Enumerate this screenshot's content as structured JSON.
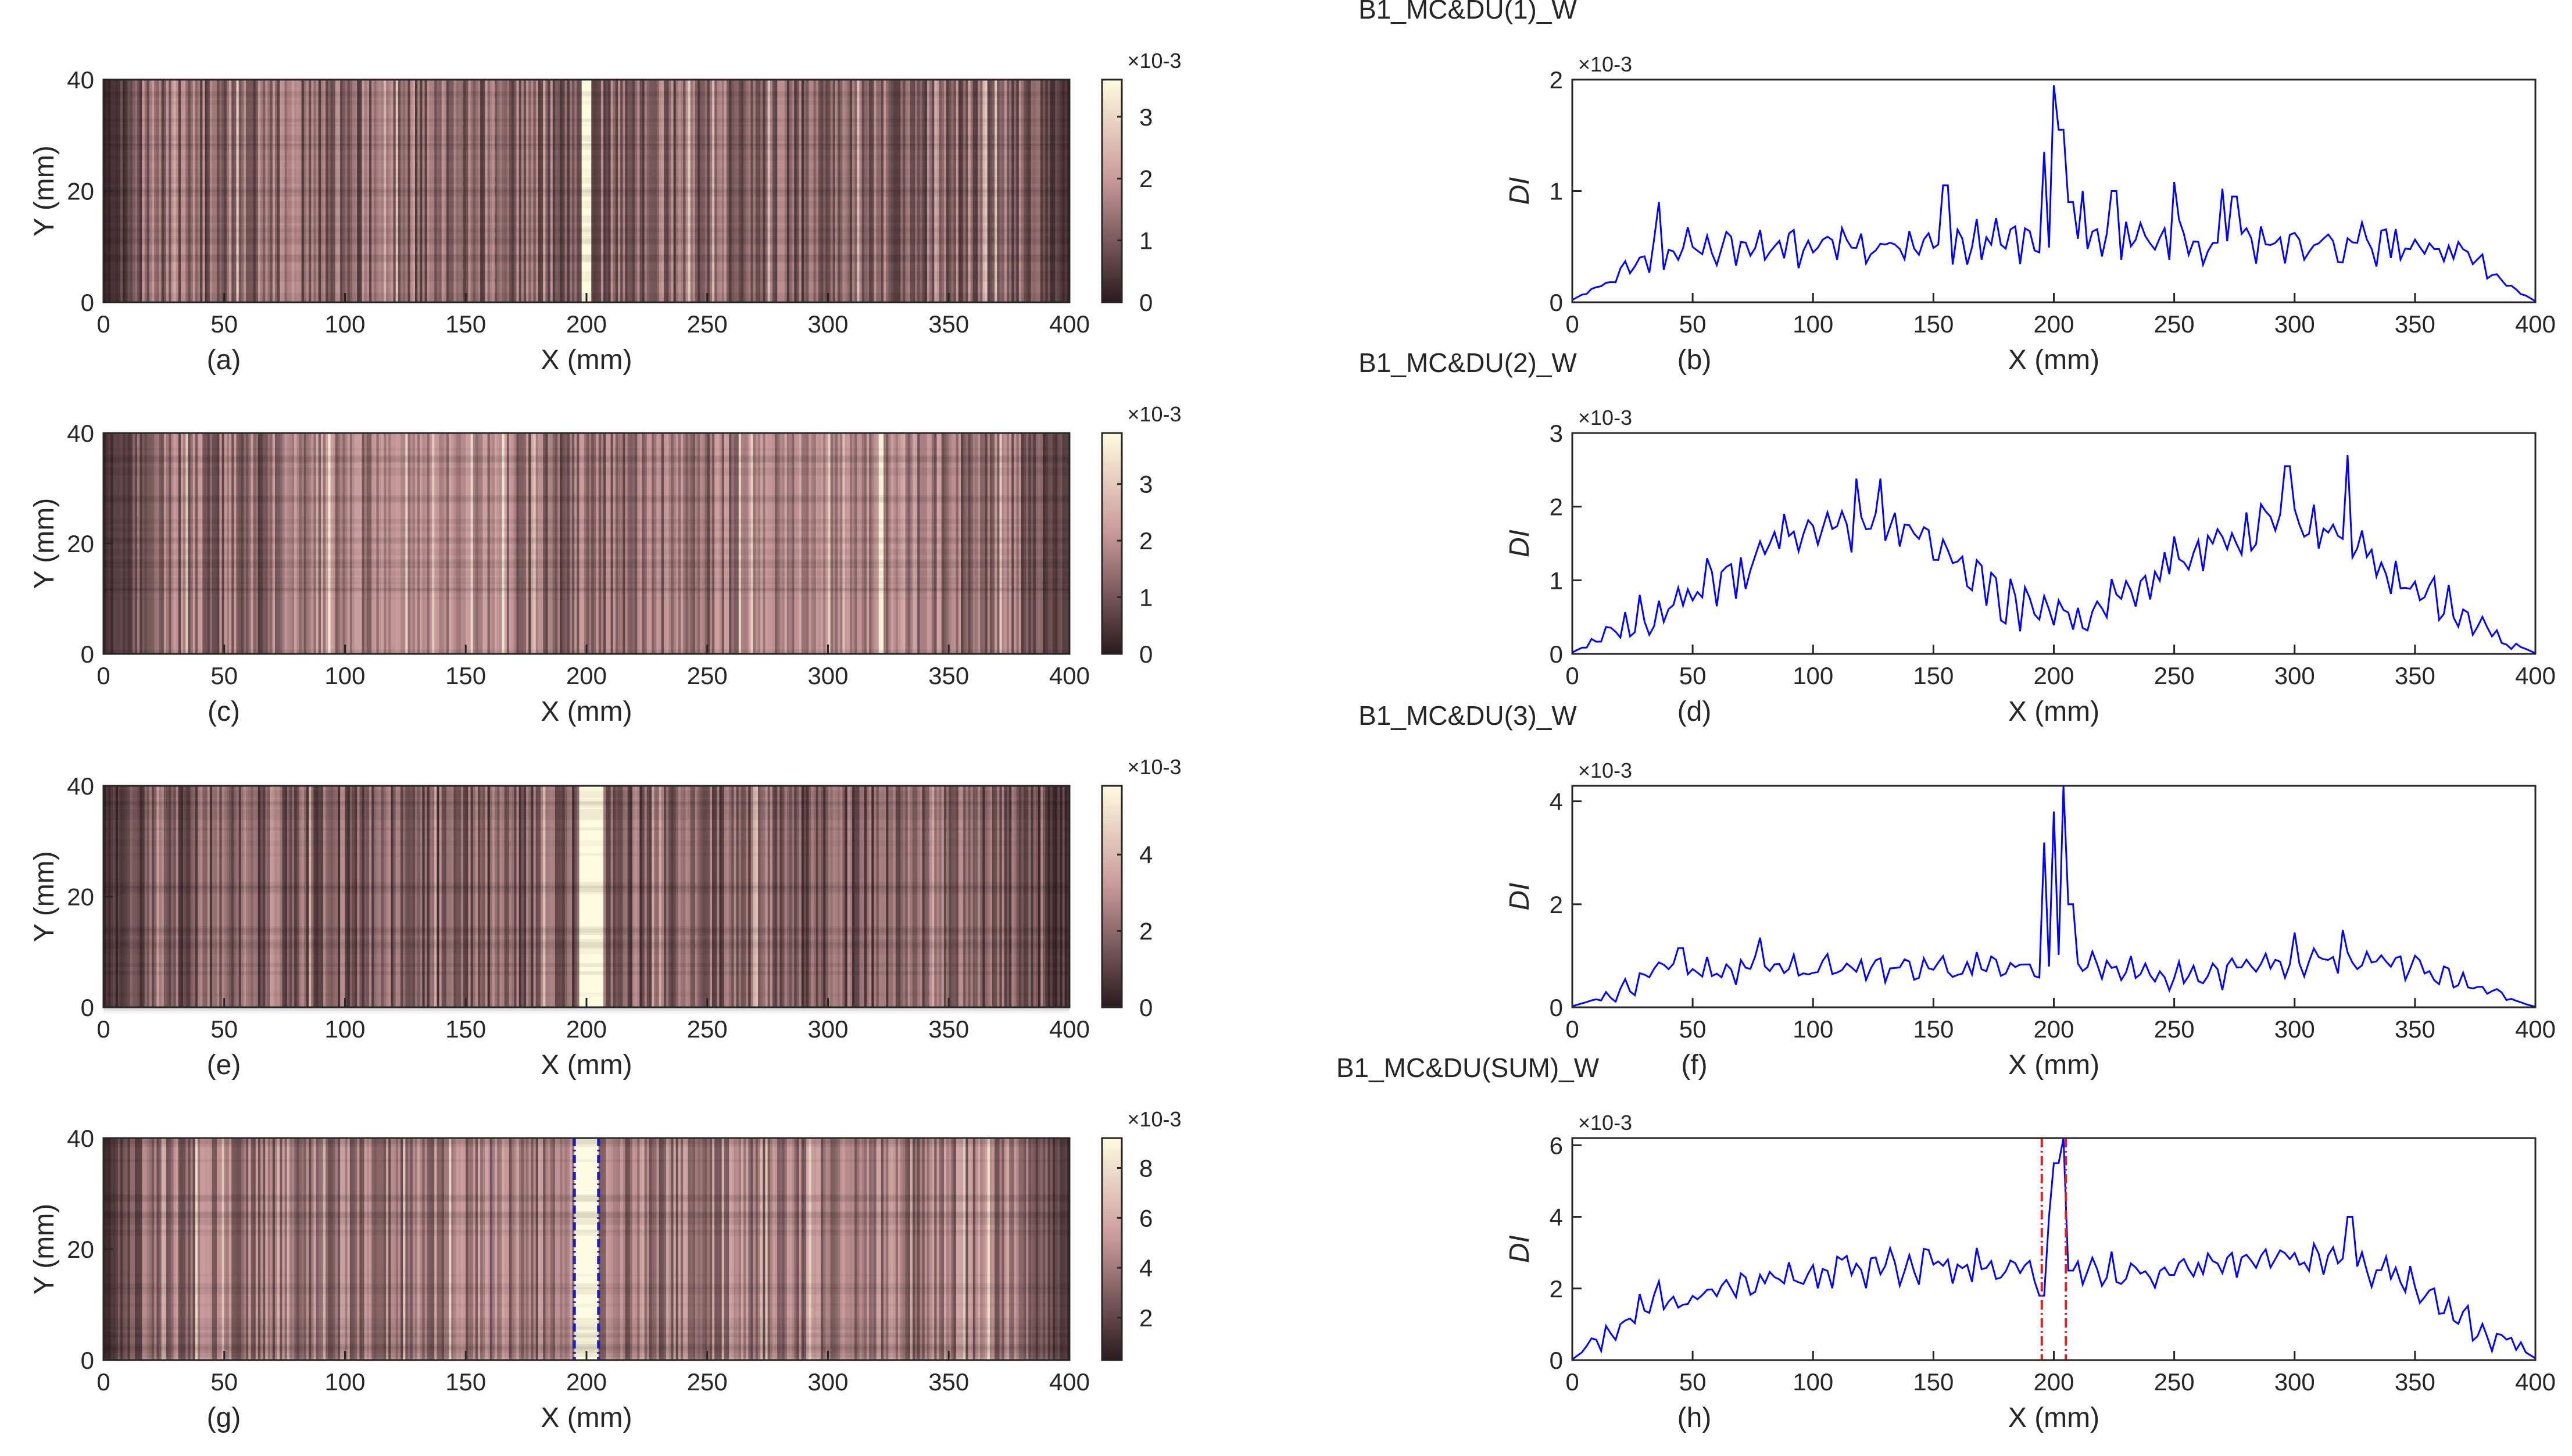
{
  "figure": {
    "x_axis_label": "X (mm)",
    "y_axis_label": "Y (mm)",
    "di_label": "DI",
    "exponent_label": "×10-3"
  },
  "colors": {
    "line": "#0000ff",
    "boundary": "#e02020",
    "marker": "#2020c0",
    "map_dark": "#2a1a1e",
    "map_mid": "#c89a9a",
    "map_light": "#fffbe0"
  },
  "chart_data": [
    {
      "type": "heatmap",
      "id": "a",
      "panel_label": "(a)",
      "title": "B1_MC&DU(1)_W",
      "xlabel": "X (mm)",
      "ylabel": "Y (mm)",
      "xlim": [
        0,
        400
      ],
      "ylim": [
        0,
        40
      ],
      "xticks": [
        0,
        50,
        100,
        150,
        200,
        250,
        300,
        350,
        400
      ],
      "yticks": [
        0,
        20,
        40
      ],
      "colorbar": {
        "range": [
          0,
          3.6
        ],
        "ticks": [
          0,
          1,
          2,
          3
        ],
        "exponent": "×10-3"
      },
      "base_level": 0.34,
      "bright_bands": [
        {
          "x": 200,
          "width": 5,
          "level": 1.0
        }
      ],
      "markers": []
    },
    {
      "type": "line",
      "id": "b",
      "panel_label": "(b)",
      "title": "",
      "xlabel": "X (mm)",
      "ylabel": "DI",
      "xlim": [
        0,
        400
      ],
      "ylim": [
        0,
        2
      ],
      "xticks": [
        0,
        50,
        100,
        150,
        200,
        250,
        300,
        350,
        400
      ],
      "yticks": [
        0,
        1,
        2
      ],
      "exponent": "×10-3",
      "envelope": [
        [
          0,
          0.02
        ],
        [
          15,
          0.2
        ],
        [
          35,
          0.5
        ],
        [
          200,
          0.55
        ],
        [
          365,
          0.5
        ],
        [
          385,
          0.2
        ],
        [
          400,
          0.01
        ]
      ],
      "amplitude": 0.22,
      "seed": 11,
      "peaks": [
        [
          36,
          0.9
        ],
        [
          155,
          1.05
        ],
        [
          196,
          1.35
        ],
        [
          200,
          1.95
        ],
        [
          203,
          1.55
        ],
        [
          207,
          0.9
        ],
        [
          212,
          1.0
        ],
        [
          225,
          1.0
        ],
        [
          250,
          1.08
        ],
        [
          270,
          1.02
        ],
        [
          275,
          0.95
        ]
      ],
      "boundaries": []
    },
    {
      "type": "heatmap",
      "id": "c",
      "panel_label": "(c)",
      "title": "B1_MC&DU(2)_W",
      "xlabel": "X (mm)",
      "ylabel": "Y (mm)",
      "xlim": [
        0,
        400
      ],
      "ylim": [
        0,
        40
      ],
      "xticks": [
        0,
        50,
        100,
        150,
        200,
        250,
        300,
        350,
        400
      ],
      "yticks": [
        0,
        20,
        40
      ],
      "colorbar": {
        "range": [
          0,
          3.9
        ],
        "ticks": [
          0,
          1,
          2,
          3
        ],
        "exponent": "×10-3"
      },
      "base_level": 0.36,
      "bright_bands": [
        {
          "x": 125,
          "width": 60,
          "level": 0.62
        },
        {
          "x": 300,
          "width": 60,
          "level": 0.62
        },
        {
          "x": 322,
          "width": 3,
          "level": 0.95
        }
      ],
      "markers": []
    },
    {
      "type": "line",
      "id": "d",
      "panel_label": "(d)",
      "title": "",
      "xlabel": "X (mm)",
      "ylabel": "DI",
      "xlim": [
        0,
        400
      ],
      "ylim": [
        0,
        3
      ],
      "xticks": [
        0,
        50,
        100,
        150,
        200,
        250,
        300,
        350,
        400
      ],
      "yticks": [
        0,
        1,
        2,
        3
      ],
      "exponent": "×10-3",
      "envelope": [
        [
          0,
          0.02
        ],
        [
          30,
          0.5
        ],
        [
          60,
          1.0
        ],
        [
          90,
          1.5
        ],
        [
          120,
          1.8
        ],
        [
          150,
          1.5
        ],
        [
          175,
          0.8
        ],
        [
          200,
          0.5
        ],
        [
          225,
          0.8
        ],
        [
          250,
          1.3
        ],
        [
          290,
          1.8
        ],
        [
          320,
          1.6
        ],
        [
          350,
          0.9
        ],
        [
          380,
          0.3
        ],
        [
          400,
          0.01
        ]
      ],
      "amplitude": 0.4,
      "seed": 23,
      "peaks": [
        [
          88,
          1.9
        ],
        [
          118,
          2.38
        ],
        [
          128,
          2.38
        ],
        [
          297,
          2.55
        ],
        [
          322,
          2.7
        ]
      ],
      "boundaries": []
    },
    {
      "type": "heatmap",
      "id": "e",
      "panel_label": "(e)",
      "title": "B1_MC&DU(3)_W",
      "xlabel": "X (mm)",
      "ylabel": "Y (mm)",
      "xlim": [
        0,
        400
      ],
      "ylim": [
        0,
        40
      ],
      "xticks": [
        0,
        50,
        100,
        150,
        200,
        250,
        300,
        350,
        400
      ],
      "yticks": [
        0,
        20,
        40
      ],
      "colorbar": {
        "range": [
          0,
          5.8
        ],
        "ticks": [
          0,
          2,
          4
        ],
        "exponent": "×10-3"
      },
      "base_level": 0.3,
      "bright_bands": [
        {
          "x": 202,
          "width": 10,
          "level": 1.0
        }
      ],
      "markers": []
    },
    {
      "type": "line",
      "id": "f",
      "panel_label": "(f)",
      "title": "",
      "xlabel": "X (mm)",
      "ylabel": "DI",
      "xlim": [
        0,
        400
      ],
      "ylim": [
        0,
        4.3
      ],
      "xticks": [
        0,
        50,
        100,
        150,
        200,
        250,
        300,
        350,
        400
      ],
      "yticks": [
        0,
        2,
        4
      ],
      "exponent": "×10-3",
      "envelope": [
        [
          0,
          0.02
        ],
        [
          20,
          0.3
        ],
        [
          40,
          0.7
        ],
        [
          150,
          0.75
        ],
        [
          190,
          0.85
        ],
        [
          260,
          0.6
        ],
        [
          300,
          0.9
        ],
        [
          350,
          0.8
        ],
        [
          385,
          0.2
        ],
        [
          400,
          0.01
        ]
      ],
      "amplitude": 0.35,
      "seed": 37,
      "peaks": [
        [
          45,
          1.15
        ],
        [
          78,
          1.35
        ],
        [
          196,
          3.2
        ],
        [
          200,
          3.8
        ],
        [
          204,
          4.3
        ],
        [
          207,
          2.0
        ],
        [
          300,
          1.45
        ],
        [
          320,
          1.5
        ]
      ],
      "boundaries": []
    },
    {
      "type": "heatmap",
      "id": "g",
      "panel_label": "(g)",
      "title": "B1_MC&DU(SUM)_W",
      "xlabel": "X (mm)",
      "ylabel": "Y (mm)",
      "xlim": [
        0,
        400
      ],
      "ylim": [
        0,
        40
      ],
      "xticks": [
        0,
        50,
        100,
        150,
        200,
        250,
        300,
        350,
        400
      ],
      "yticks": [
        0,
        20,
        40
      ],
      "colorbar": {
        "range": [
          0.3,
          9.2
        ],
        "ticks": [
          2,
          4,
          6,
          8
        ],
        "exponent": "×10-3"
      },
      "base_level": 0.42,
      "bright_bands": [
        {
          "x": 200,
          "width": 10,
          "level": 1.0
        }
      ],
      "markers": [
        195,
        205
      ]
    },
    {
      "type": "line",
      "id": "h",
      "panel_label": "(h)",
      "title": "",
      "xlabel": "X (mm)",
      "ylabel": "DI",
      "xlim": [
        0,
        400
      ],
      "ylim": [
        0,
        6.2
      ],
      "xticks": [
        0,
        50,
        100,
        150,
        200,
        250,
        300,
        350,
        400
      ],
      "yticks": [
        0,
        2,
        4,
        6
      ],
      "exponent": "×10-3",
      "envelope": [
        [
          0,
          0.02
        ],
        [
          20,
          1.0
        ],
        [
          40,
          1.8
        ],
        [
          100,
          2.5
        ],
        [
          150,
          2.7
        ],
        [
          190,
          2.5
        ],
        [
          250,
          2.5
        ],
        [
          300,
          3.0
        ],
        [
          340,
          2.5
        ],
        [
          370,
          1.3
        ],
        [
          400,
          0.05
        ]
      ],
      "amplitude": 0.6,
      "seed": 51,
      "peaks": [
        [
          195,
          1.8
        ],
        [
          198,
          4.0
        ],
        [
          201,
          5.5
        ],
        [
          204,
          6.2
        ],
        [
          207,
          2.5
        ],
        [
          323,
          4.0
        ]
      ],
      "boundaries": [
        195,
        205
      ]
    }
  ]
}
